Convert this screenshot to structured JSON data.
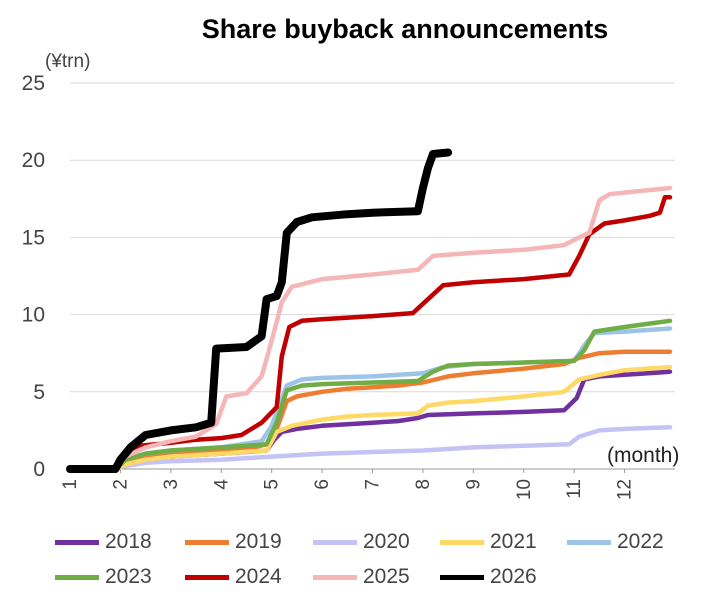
{
  "chart_data": {
    "type": "line",
    "title": "Share buyback announcements",
    "ylabel": "(¥trn)",
    "xlabel": "(month)",
    "x_ticks": [
      "1",
      "2",
      "3",
      "4",
      "5",
      "6",
      "7",
      "8",
      "9",
      "10",
      "11",
      "12"
    ],
    "xlim": [
      1,
      13
    ],
    "ylim": [
      0,
      25
    ],
    "y_ticks": [
      "0",
      "5",
      "10",
      "15",
      "20",
      "25"
    ],
    "grid": "horizontal",
    "legend_position": "bottom",
    "series": [
      {
        "name": "2018",
        "color": "#7030a0",
        "points": [
          [
            1,
            0
          ],
          [
            1.9,
            0
          ],
          [
            2.1,
            0.3
          ],
          [
            2.5,
            0.6
          ],
          [
            3,
            0.8
          ],
          [
            3.5,
            0.9
          ],
          [
            4,
            1.0
          ],
          [
            4.5,
            1.1
          ],
          [
            4.9,
            1.2
          ],
          [
            5.05,
            1.9
          ],
          [
            5.2,
            2.4
          ],
          [
            5.5,
            2.6
          ],
          [
            6,
            2.8
          ],
          [
            6.5,
            2.9
          ],
          [
            7,
            3.0
          ],
          [
            7.5,
            3.1
          ],
          [
            7.9,
            3.3
          ],
          [
            8.1,
            3.5
          ],
          [
            9,
            3.6
          ],
          [
            10,
            3.7
          ],
          [
            10.8,
            3.8
          ],
          [
            11.05,
            4.6
          ],
          [
            11.2,
            5.8
          ],
          [
            11.5,
            6.0
          ],
          [
            12,
            6.1
          ],
          [
            12.9,
            6.3
          ]
        ]
      },
      {
        "name": "2019",
        "color": "#ed7d31",
        "points": [
          [
            1,
            0
          ],
          [
            1.9,
            0
          ],
          [
            2.1,
            0.4
          ],
          [
            2.5,
            0.8
          ],
          [
            3,
            1.0
          ],
          [
            3.5,
            1.1
          ],
          [
            4,
            1.2
          ],
          [
            4.5,
            1.3
          ],
          [
            4.9,
            1.6
          ],
          [
            5.1,
            2.6
          ],
          [
            5.3,
            4.4
          ],
          [
            5.5,
            4.7
          ],
          [
            6,
            5.0
          ],
          [
            6.5,
            5.2
          ],
          [
            7,
            5.3
          ],
          [
            7.5,
            5.4
          ],
          [
            8,
            5.6
          ],
          [
            8.5,
            6.0
          ],
          [
            9,
            6.2
          ],
          [
            10,
            6.5
          ],
          [
            10.8,
            6.8
          ],
          [
            11.1,
            7.2
          ],
          [
            11.5,
            7.5
          ],
          [
            12,
            7.6
          ],
          [
            12.9,
            7.6
          ]
        ]
      },
      {
        "name": "2020",
        "color": "#c5c3f5",
        "points": [
          [
            1,
            0
          ],
          [
            1.9,
            0
          ],
          [
            2.1,
            0.2
          ],
          [
            2.5,
            0.4
          ],
          [
            3,
            0.5
          ],
          [
            4,
            0.6
          ],
          [
            5,
            0.8
          ],
          [
            6,
            1.0
          ],
          [
            7,
            1.1
          ],
          [
            8,
            1.2
          ],
          [
            9,
            1.4
          ],
          [
            10,
            1.5
          ],
          [
            10.9,
            1.6
          ],
          [
            11.1,
            2.1
          ],
          [
            11.5,
            2.5
          ],
          [
            12,
            2.6
          ],
          [
            12.9,
            2.7
          ]
        ]
      },
      {
        "name": "2021",
        "color": "#ffd966",
        "points": [
          [
            1,
            0
          ],
          [
            1.9,
            0
          ],
          [
            2.1,
            0.3
          ],
          [
            2.5,
            0.6
          ],
          [
            3,
            0.8
          ],
          [
            4,
            1.0
          ],
          [
            4.9,
            1.2
          ],
          [
            5.1,
            2.4
          ],
          [
            5.4,
            2.8
          ],
          [
            6,
            3.2
          ],
          [
            6.5,
            3.4
          ],
          [
            7,
            3.5
          ],
          [
            7.9,
            3.6
          ],
          [
            8.1,
            4.1
          ],
          [
            8.5,
            4.3
          ],
          [
            9,
            4.4
          ],
          [
            10,
            4.7
          ],
          [
            10.8,
            5.0
          ],
          [
            11.1,
            5.8
          ],
          [
            11.5,
            6.1
          ],
          [
            12,
            6.4
          ],
          [
            12.9,
            6.6
          ]
        ]
      },
      {
        "name": "2022",
        "color": "#9dc3e6",
        "points": [
          [
            1,
            0
          ],
          [
            1.9,
            0
          ],
          [
            2.1,
            0.6
          ],
          [
            2.5,
            1.0
          ],
          [
            3,
            1.2
          ],
          [
            4,
            1.4
          ],
          [
            4.8,
            1.8
          ],
          [
            5.0,
            2.8
          ],
          [
            5.3,
            5.4
          ],
          [
            5.6,
            5.8
          ],
          [
            6,
            5.9
          ],
          [
            7,
            6.0
          ],
          [
            8,
            6.2
          ],
          [
            8.4,
            6.6
          ],
          [
            9,
            6.8
          ],
          [
            10,
            6.9
          ],
          [
            11,
            7.0
          ],
          [
            11.2,
            8.0
          ],
          [
            11.4,
            8.8
          ],
          [
            12,
            8.9
          ],
          [
            12.9,
            9.1
          ]
        ]
      },
      {
        "name": "2023",
        "color": "#70ad47",
        "points": [
          [
            1,
            0
          ],
          [
            1.9,
            0
          ],
          [
            2.1,
            0.6
          ],
          [
            2.5,
            1.0
          ],
          [
            3,
            1.2
          ],
          [
            4,
            1.4
          ],
          [
            4.9,
            1.6
          ],
          [
            5.1,
            3.0
          ],
          [
            5.3,
            5.1
          ],
          [
            5.6,
            5.4
          ],
          [
            6,
            5.5
          ],
          [
            7,
            5.6
          ],
          [
            7.9,
            5.7
          ],
          [
            8.2,
            6.3
          ],
          [
            8.5,
            6.7
          ],
          [
            9,
            6.8
          ],
          [
            10,
            6.9
          ],
          [
            11,
            7.0
          ],
          [
            11.2,
            7.7
          ],
          [
            11.4,
            8.9
          ],
          [
            12,
            9.2
          ],
          [
            12.9,
            9.6
          ]
        ]
      },
      {
        "name": "2024",
        "color": "#c00000",
        "points": [
          [
            1,
            0
          ],
          [
            1.9,
            0
          ],
          [
            2.1,
            0.9
          ],
          [
            2.4,
            1.5
          ],
          [
            3,
            1.7
          ],
          [
            3.5,
            1.9
          ],
          [
            4,
            2.0
          ],
          [
            4.4,
            2.2
          ],
          [
            4.8,
            3.0
          ],
          [
            5.1,
            4.0
          ],
          [
            5.2,
            7.3
          ],
          [
            5.35,
            9.2
          ],
          [
            5.6,
            9.6
          ],
          [
            6,
            9.7
          ],
          [
            7,
            9.9
          ],
          [
            7.8,
            10.1
          ],
          [
            8.1,
            11.0
          ],
          [
            8.4,
            11.9
          ],
          [
            9,
            12.1
          ],
          [
            10,
            12.3
          ],
          [
            10.9,
            12.6
          ],
          [
            11.1,
            13.8
          ],
          [
            11.3,
            15.2
          ],
          [
            11.6,
            15.9
          ],
          [
            12,
            16.1
          ],
          [
            12.5,
            16.4
          ],
          [
            12.7,
            16.6
          ],
          [
            12.8,
            17.6
          ],
          [
            12.9,
            17.6
          ]
        ]
      },
      {
        "name": "2025",
        "color": "#f4b6b6",
        "points": [
          [
            1,
            0
          ],
          [
            1.9,
            0
          ],
          [
            2.1,
            0.8
          ],
          [
            2.5,
            1.4
          ],
          [
            3,
            1.8
          ],
          [
            3.5,
            2.1
          ],
          [
            3.9,
            2.9
          ],
          [
            4.1,
            4.7
          ],
          [
            4.5,
            4.9
          ],
          [
            4.8,
            6.0
          ],
          [
            5.0,
            8.3
          ],
          [
            5.2,
            10.8
          ],
          [
            5.4,
            11.8
          ],
          [
            6,
            12.3
          ],
          [
            7,
            12.6
          ],
          [
            7.9,
            12.9
          ],
          [
            8.2,
            13.8
          ],
          [
            9,
            14.0
          ],
          [
            10,
            14.2
          ],
          [
            10.8,
            14.5
          ],
          [
            11.1,
            15.0
          ],
          [
            11.3,
            15.3
          ],
          [
            11.5,
            17.4
          ],
          [
            11.7,
            17.8
          ],
          [
            12,
            17.9
          ],
          [
            12.9,
            18.2
          ]
        ]
      },
      {
        "name": "2026",
        "color": "#000000",
        "points": [
          [
            1,
            0
          ],
          [
            1.9,
            0
          ],
          [
            2.0,
            0.6
          ],
          [
            2.2,
            1.4
          ],
          [
            2.5,
            2.2
          ],
          [
            3,
            2.5
          ],
          [
            3.5,
            2.7
          ],
          [
            3.8,
            3.0
          ],
          [
            3.9,
            7.8
          ],
          [
            4.5,
            7.9
          ],
          [
            4.8,
            8.6
          ],
          [
            4.9,
            11.0
          ],
          [
            5.1,
            11.2
          ],
          [
            5.2,
            12.1
          ],
          [
            5.3,
            15.3
          ],
          [
            5.5,
            16.0
          ],
          [
            5.8,
            16.3
          ],
          [
            6.5,
            16.5
          ],
          [
            7,
            16.6
          ],
          [
            7.9,
            16.7
          ],
          [
            8.0,
            18.2
          ],
          [
            8.1,
            19.5
          ],
          [
            8.2,
            20.4
          ],
          [
            8.5,
            20.5
          ]
        ]
      }
    ]
  }
}
